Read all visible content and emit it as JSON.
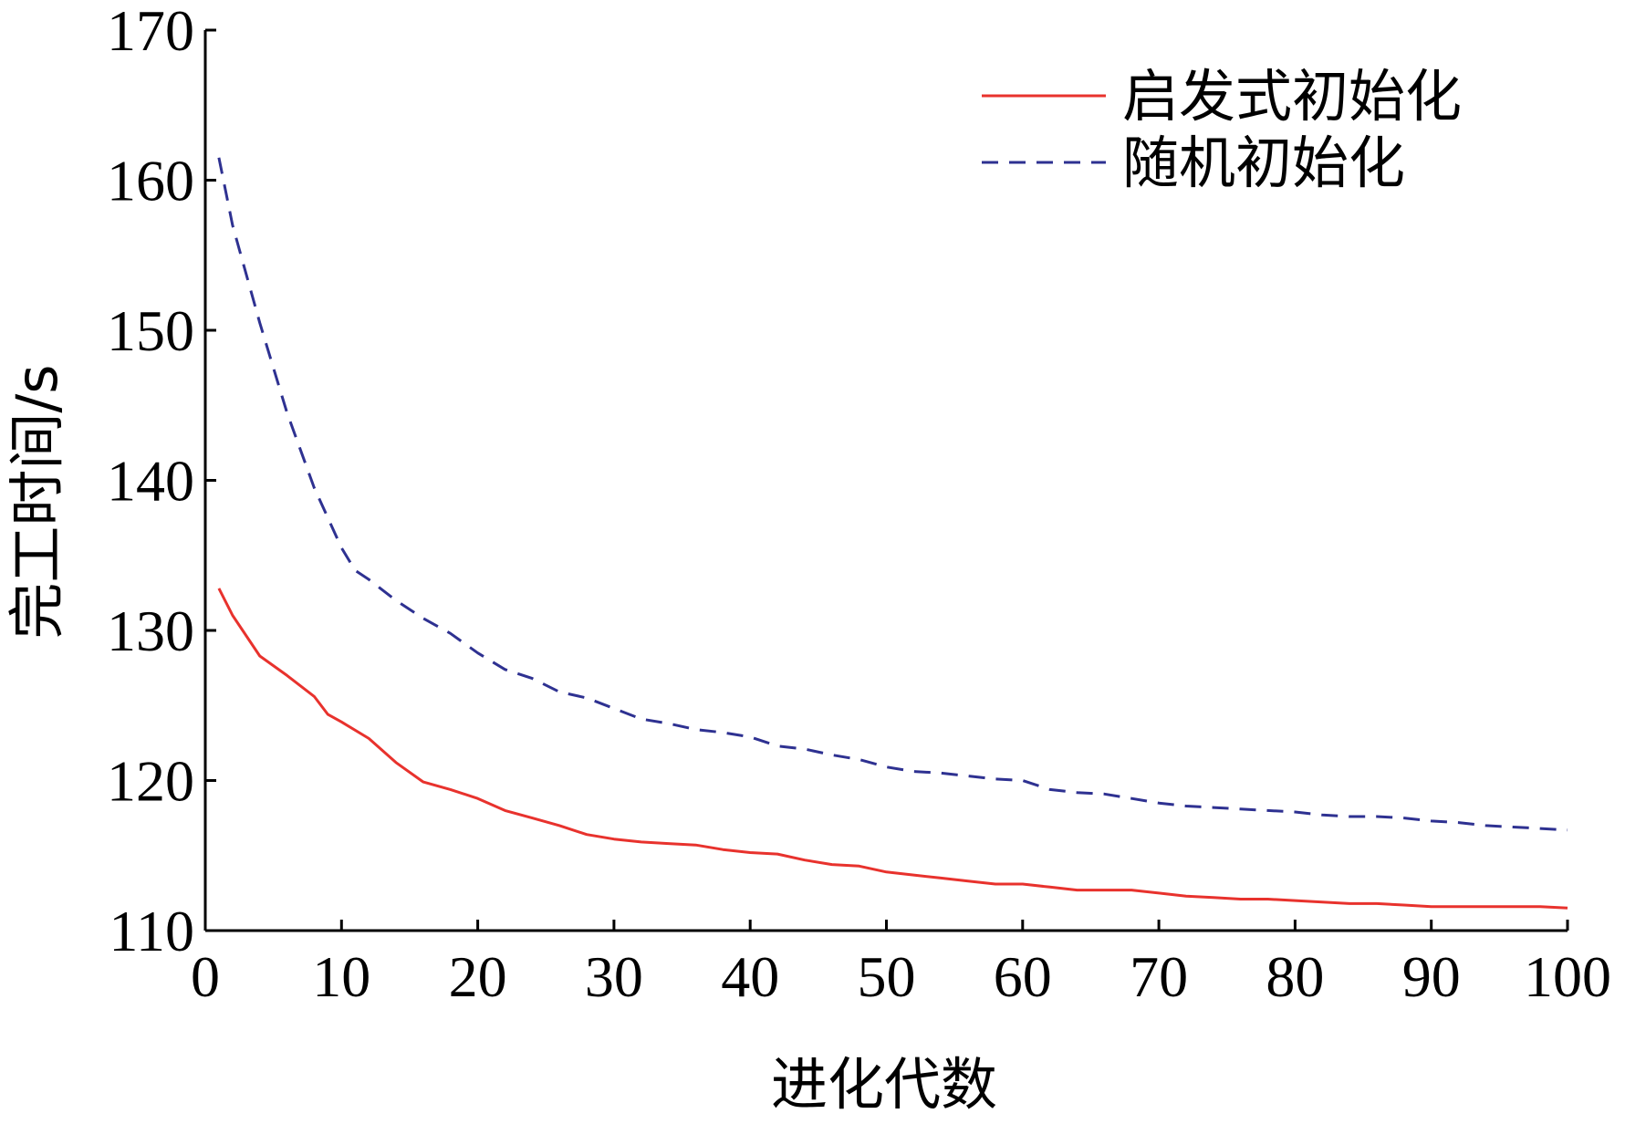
{
  "chart_data": {
    "type": "line",
    "title": "",
    "xlabel": "进化代数",
    "ylabel": "完工时间/s",
    "xlim": [
      0,
      100
    ],
    "ylim": [
      110,
      170
    ],
    "xticks": [
      0,
      10,
      20,
      30,
      40,
      50,
      60,
      70,
      80,
      90,
      100
    ],
    "yticks": [
      110,
      120,
      130,
      140,
      150,
      160,
      170
    ],
    "grid": false,
    "legend_position": "top-right",
    "series": [
      {
        "name": "启发式初始化",
        "color": "#e8322d",
        "style": "solid",
        "x": [
          1,
          2,
          4,
          6,
          8,
          9,
          10,
          12,
          14,
          16,
          18,
          20,
          22,
          24,
          26,
          28,
          30,
          32,
          34,
          36,
          38,
          40,
          42,
          44,
          46,
          48,
          50,
          52,
          54,
          56,
          58,
          60,
          62,
          64,
          66,
          68,
          70,
          72,
          74,
          76,
          78,
          80,
          82,
          84,
          86,
          88,
          90,
          92,
          94,
          96,
          98,
          100
        ],
        "y": [
          132.8,
          131.0,
          128.3,
          127.0,
          125.6,
          124.4,
          123.9,
          122.8,
          121.2,
          119.9,
          119.4,
          118.8,
          118.0,
          117.5,
          117.0,
          116.4,
          116.1,
          115.9,
          115.8,
          115.7,
          115.4,
          115.2,
          115.1,
          114.7,
          114.4,
          114.3,
          113.9,
          113.7,
          113.5,
          113.3,
          113.1,
          113.1,
          112.9,
          112.7,
          112.7,
          112.7,
          112.5,
          112.3,
          112.2,
          112.1,
          112.1,
          112.0,
          111.9,
          111.8,
          111.8,
          111.7,
          111.6,
          111.6,
          111.6,
          111.6,
          111.6,
          111.5
        ]
      },
      {
        "name": "随机初始化",
        "color": "#2e3191",
        "style": "dashed",
        "x": [
          1,
          2,
          4,
          6,
          8,
          10,
          11,
          12,
          14,
          16,
          18,
          20,
          22,
          24,
          26,
          28,
          30,
          32,
          34,
          36,
          38,
          40,
          42,
          44,
          46,
          48,
          50,
          52,
          54,
          56,
          58,
          60,
          62,
          64,
          66,
          68,
          70,
          72,
          74,
          76,
          78,
          80,
          82,
          84,
          86,
          88,
          90,
          92,
          94,
          96,
          98,
          100
        ],
        "y": [
          161.5,
          157.0,
          150.5,
          144.5,
          139.5,
          135.5,
          134.0,
          133.4,
          132.0,
          130.8,
          129.8,
          128.5,
          127.4,
          126.8,
          125.9,
          125.5,
          124.8,
          124.1,
          123.8,
          123.4,
          123.2,
          122.9,
          122.3,
          122.1,
          121.7,
          121.4,
          120.9,
          120.6,
          120.5,
          120.3,
          120.1,
          120.0,
          119.4,
          119.2,
          119.1,
          118.8,
          118.5,
          118.3,
          118.2,
          118.1,
          118.0,
          117.9,
          117.7,
          117.6,
          117.6,
          117.5,
          117.3,
          117.2,
          117.0,
          116.9,
          116.8,
          116.7
        ]
      }
    ]
  }
}
